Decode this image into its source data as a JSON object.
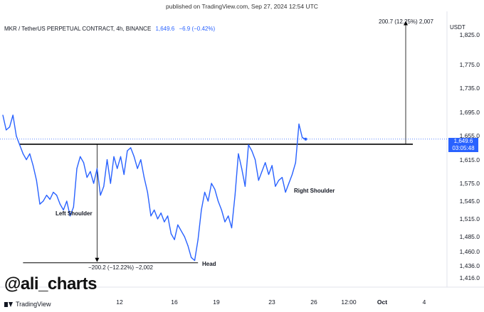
{
  "published": "published on TradingView.com, Sep 27, 2024 12:54 UTC",
  "legend": {
    "symbol": "MKR / TetherUS PERPETUAL CONTRACT, 4h, BINANCE",
    "price": "1,649.6",
    "change": "−6.9 (−0.42%)"
  },
  "currency": "USDT",
  "price_tag": {
    "price": "1,649.6",
    "countdown": "03:05:48"
  },
  "watermark": "@ali_charts",
  "footer_brand": "TradingView",
  "annotations": {
    "up_measure": "200.7 (12.25%) 2,007",
    "down_measure": "−200.2 (−12.22%) −2,002",
    "left_shoulder": "Left Shoulder",
    "head": "Head",
    "right_shoulder": "Right Shoulder"
  },
  "colors": {
    "line": "#2962ff",
    "price_tag": "#2962ff",
    "neckline": "#000000"
  },
  "chart_data": {
    "type": "line",
    "title": "",
    "series": [
      {
        "name": "",
        "points": [
          [
            0,
            1690
          ],
          [
            1,
            1665
          ],
          [
            2,
            1670
          ],
          [
            3,
            1690
          ],
          [
            4,
            1655
          ],
          [
            5,
            1640
          ],
          [
            6,
            1625
          ],
          [
            7,
            1615
          ],
          [
            8,
            1625
          ],
          [
            9,
            1605
          ],
          [
            10,
            1580
          ],
          [
            11,
            1540
          ],
          [
            12,
            1545
          ],
          [
            13,
            1555
          ],
          [
            14,
            1548
          ],
          [
            15,
            1560
          ],
          [
            16,
            1555
          ],
          [
            17,
            1540
          ],
          [
            18,
            1530
          ],
          [
            19,
            1545
          ],
          [
            20,
            1520
          ],
          [
            21,
            1535
          ],
          [
            22,
            1600
          ],
          [
            23,
            1620
          ],
          [
            24,
            1610
          ],
          [
            25,
            1585
          ],
          [
            26,
            1595
          ],
          [
            27,
            1575
          ],
          [
            28,
            1600
          ],
          [
            29,
            1555
          ],
          [
            30,
            1570
          ],
          [
            31,
            1615
          ],
          [
            32,
            1575
          ],
          [
            33,
            1620
          ],
          [
            34,
            1600
          ],
          [
            35,
            1620
          ],
          [
            36,
            1590
          ],
          [
            37,
            1630
          ],
          [
            38,
            1635
          ],
          [
            39,
            1620
          ],
          [
            40,
            1600
          ],
          [
            41,
            1615
          ],
          [
            42,
            1585
          ],
          [
            43,
            1560
          ],
          [
            44,
            1520
          ],
          [
            45,
            1530
          ],
          [
            46,
            1515
          ],
          [
            47,
            1525
          ],
          [
            48,
            1510
          ],
          [
            49,
            1520
          ],
          [
            50,
            1490
          ],
          [
            51,
            1480
          ],
          [
            52,
            1505
          ],
          [
            53,
            1495
          ],
          [
            54,
            1485
          ],
          [
            55,
            1470
          ],
          [
            56,
            1450
          ],
          [
            57,
            1445
          ],
          [
            58,
            1480
          ],
          [
            59,
            1530
          ],
          [
            60,
            1560
          ],
          [
            61,
            1545
          ],
          [
            62,
            1575
          ],
          [
            63,
            1565
          ],
          [
            64,
            1545
          ],
          [
            65,
            1530
          ],
          [
            66,
            1510
          ],
          [
            67,
            1520
          ],
          [
            68,
            1500
          ],
          [
            69,
            1555
          ],
          [
            70,
            1625
          ],
          [
            71,
            1600
          ],
          [
            72,
            1570
          ],
          [
            73,
            1640
          ],
          [
            74,
            1630
          ],
          [
            75,
            1615
          ],
          [
            76,
            1580
          ],
          [
            77,
            1595
          ],
          [
            78,
            1610
          ],
          [
            79,
            1590
          ],
          [
            80,
            1605
          ],
          [
            81,
            1570
          ],
          [
            82,
            1580
          ],
          [
            83,
            1585
          ],
          [
            84,
            1560
          ],
          [
            85,
            1575
          ],
          [
            86,
            1590
          ],
          [
            87,
            1610
          ],
          [
            88,
            1675
          ],
          [
            89,
            1652
          ],
          [
            90,
            1649.6
          ]
        ]
      }
    ],
    "neckline": 1641,
    "head_level": 1441,
    "ylim": [
      1400,
      1865
    ],
    "y_ticks": [
      1825,
      1775,
      1735,
      1695,
      1655,
      1615,
      1575,
      1545,
      1515,
      1485,
      1460,
      1436,
      1416
    ],
    "y_tick_labels": [
      "1,825.0",
      "1,775.0",
      "1,735.0",
      "1,695.0",
      "1,655.0",
      "1,615.0",
      "1,575.0",
      "1,545.0",
      "1,515.0",
      "1,485.0",
      "1,460.0",
      "1,436.0",
      "1,416.0"
    ],
    "x_ticks": [
      {
        "label": "12",
        "bold": false
      },
      {
        "label": "16",
        "bold": false
      },
      {
        "label": "19",
        "bold": false
      },
      {
        "label": "23",
        "bold": false
      },
      {
        "label": "26",
        "bold": false
      },
      {
        "label": "12:00",
        "bold": false
      },
      {
        "label": "Oct",
        "bold": true
      },
      {
        "label": "4",
        "bold": false
      }
    ],
    "grid": true,
    "last_price": 1649.6,
    "target_price": 1850
  }
}
